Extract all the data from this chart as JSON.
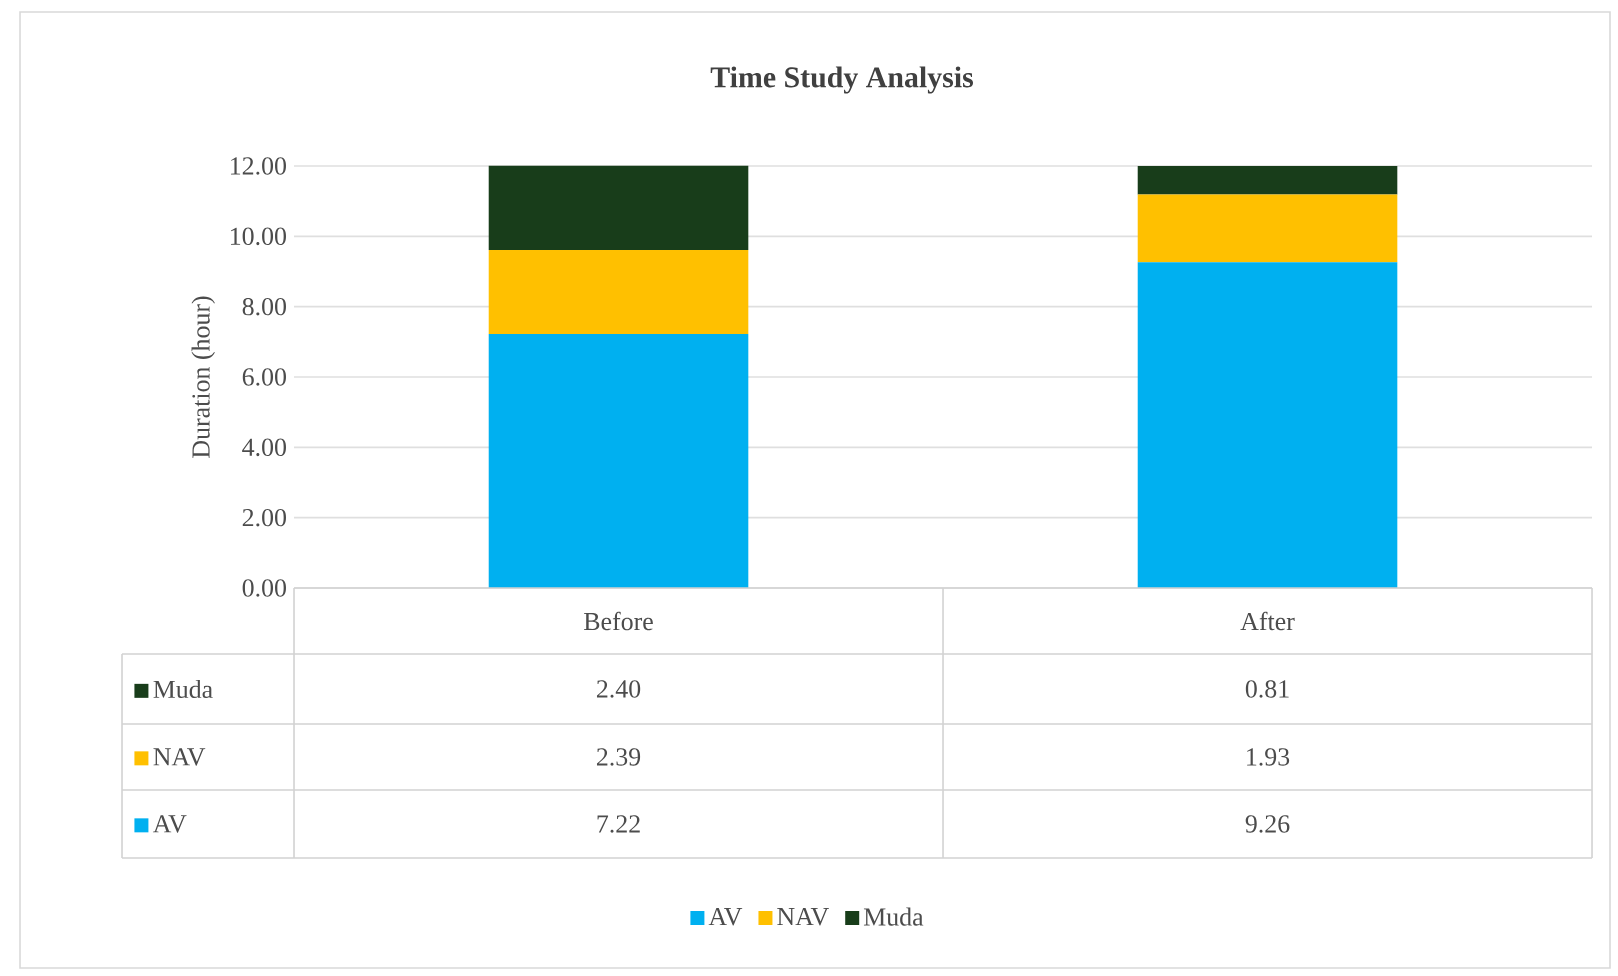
{
  "chart_data": {
    "type": "bar",
    "stacked": true,
    "title": "Time Study Analysis",
    "ylabel": "Duration (hour)",
    "categories": [
      "Before",
      "After"
    ],
    "series": [
      {
        "name": "AV",
        "color": "#00b0f0",
        "values": [
          7.22,
          9.26
        ],
        "value_labels": [
          "7.22",
          "9.26"
        ]
      },
      {
        "name": "NAV",
        "color": "#ffc000",
        "values": [
          2.39,
          1.93
        ],
        "value_labels": [
          "2.39",
          "1.93"
        ]
      },
      {
        "name": "Muda",
        "color": "#183d1a",
        "values": [
          2.4,
          0.81
        ],
        "value_labels": [
          "2.40",
          "0.81"
        ]
      }
    ],
    "ylim": [
      0,
      12
    ],
    "yticks": [
      {
        "value": 0,
        "label": "0.00"
      },
      {
        "value": 2,
        "label": "2.00"
      },
      {
        "value": 4,
        "label": "4.00"
      },
      {
        "value": 6,
        "label": "6.00"
      },
      {
        "value": 8,
        "label": "8.00"
      },
      {
        "value": 10,
        "label": "10.00"
      },
      {
        "value": 12,
        "label": "12.00"
      }
    ],
    "grid": "y",
    "legend": "bottom"
  }
}
